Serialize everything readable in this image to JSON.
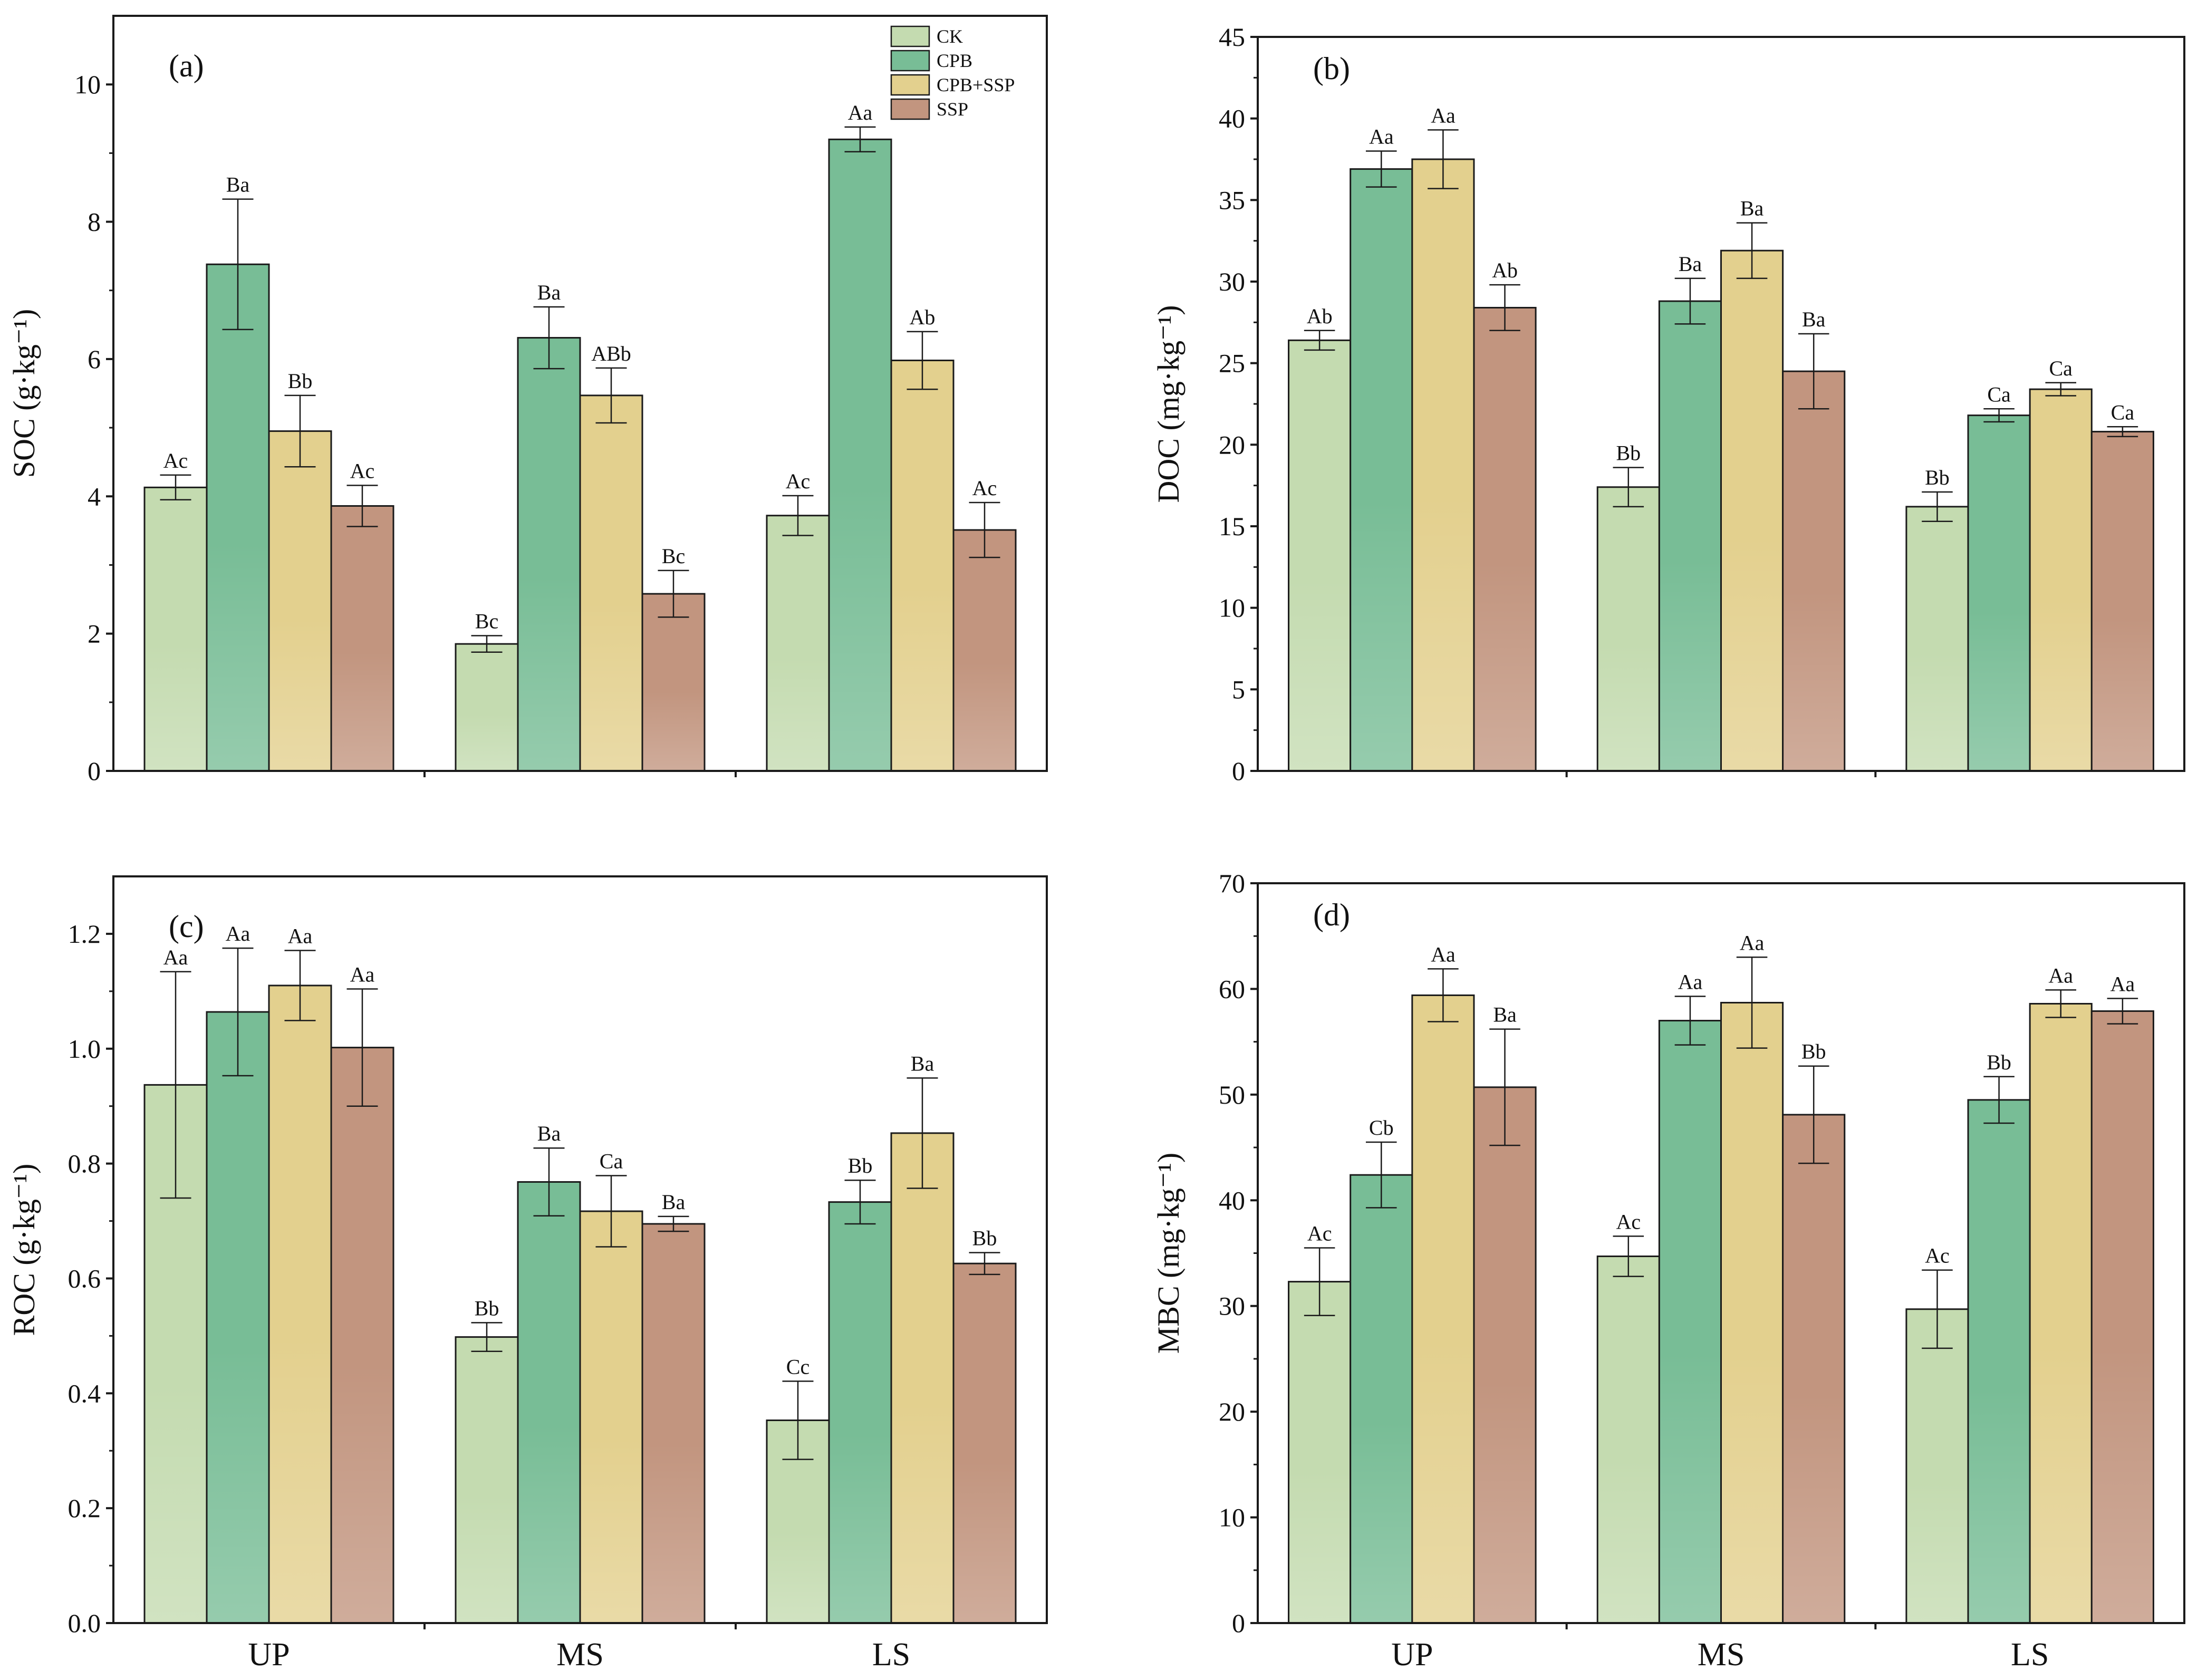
{
  "colors": {
    "CK": "#c4dbb0",
    "CPB": "#78bd96",
    "CPB+SSP": "#e3d08e",
    "SSP": "#c2957f"
  },
  "chart_data": [
    {
      "type": "bar",
      "panel_label": "(a)",
      "ylabel": "SOC (g·kg⁻¹)",
      "ylim": [
        0,
        11
      ],
      "yticks": [
        "0",
        "2",
        "4",
        "6",
        "8",
        "10"
      ],
      "categories": [
        "UP",
        "MS",
        "LS"
      ],
      "show_category_labels": false,
      "legend": {
        "position": "top-right",
        "entries": [
          "CK",
          "CPB",
          "CPB+SSP",
          "SSP"
        ]
      },
      "series": [
        {
          "name": "CK",
          "values": [
            4.13,
            1.85,
            3.72
          ],
          "errors": [
            0.18,
            0.12,
            0.29
          ],
          "labels": [
            "Ac",
            "Bc",
            "Ac"
          ]
        },
        {
          "name": "CPB",
          "values": [
            7.38,
            6.31,
            9.2
          ],
          "errors": [
            0.95,
            0.45,
            0.18
          ],
          "labels": [
            "Ba",
            "Ba",
            "Aa"
          ]
        },
        {
          "name": "CPB+SSP",
          "values": [
            4.95,
            5.47,
            5.98
          ],
          "errors": [
            0.52,
            0.4,
            0.42
          ],
          "labels": [
            "Bb",
            "ABb",
            "Ab"
          ]
        },
        {
          "name": "SSP",
          "values": [
            3.86,
            2.58,
            3.51
          ],
          "errors": [
            0.3,
            0.34,
            0.4
          ],
          "labels": [
            "Ac",
            "Bc",
            "Ac"
          ]
        }
      ]
    },
    {
      "type": "bar",
      "panel_label": "(b)",
      "ylabel": "DOC (mg·kg⁻¹)",
      "ylim": [
        0,
        45
      ],
      "yticks": [
        "0",
        "5",
        "10",
        "15",
        "20",
        "25",
        "30",
        "35",
        "40",
        "45"
      ],
      "categories": [
        "UP",
        "MS",
        "LS"
      ],
      "show_category_labels": false,
      "series": [
        {
          "name": "CK",
          "values": [
            26.4,
            17.4,
            16.2
          ],
          "errors": [
            0.6,
            1.2,
            0.9
          ],
          "labels": [
            "Ab",
            "Bb",
            "Bb"
          ]
        },
        {
          "name": "CPB",
          "values": [
            36.9,
            28.8,
            21.8
          ],
          "errors": [
            1.1,
            1.4,
            0.4
          ],
          "labels": [
            "Aa",
            "Ba",
            "Ca"
          ]
        },
        {
          "name": "CPB+SSP",
          "values": [
            37.5,
            31.9,
            23.4
          ],
          "errors": [
            1.8,
            1.7,
            0.4
          ],
          "labels": [
            "Aa",
            "Ba",
            "Ca"
          ]
        },
        {
          "name": "SSP",
          "values": [
            28.4,
            24.5,
            20.8
          ],
          "errors": [
            1.4,
            2.3,
            0.3
          ],
          "labels": [
            "Ab",
            "Ba",
            "Ca"
          ]
        }
      ]
    },
    {
      "type": "bar",
      "panel_label": "(c)",
      "ylabel": "ROC (g·kg⁻¹)",
      "ylim": [
        0,
        1.3
      ],
      "yticks": [
        "0.0",
        "0.2",
        "0.4",
        "0.6",
        "0.8",
        "1.0",
        "1.2"
      ],
      "categories": [
        "UP",
        "MS",
        "LS"
      ],
      "show_category_labels": true,
      "series": [
        {
          "name": "CK",
          "values": [
            0.937,
            0.498,
            0.353
          ],
          "errors": [
            0.197,
            0.025,
            0.068
          ],
          "labels": [
            "Aa",
            "Bb",
            "Cc"
          ]
        },
        {
          "name": "CPB",
          "values": [
            1.064,
            0.768,
            0.733
          ],
          "errors": [
            0.111,
            0.059,
            0.038
          ],
          "labels": [
            "Aa",
            "Ba",
            "Bb"
          ]
        },
        {
          "name": "CPB+SSP",
          "values": [
            1.11,
            0.717,
            0.853
          ],
          "errors": [
            0.061,
            0.062,
            0.096
          ],
          "labels": [
            "Aa",
            "Ca",
            "Ba"
          ]
        },
        {
          "name": "SSP",
          "values": [
            1.002,
            0.695,
            0.626
          ],
          "errors": [
            0.102,
            0.013,
            0.019
          ],
          "labels": [
            "Aa",
            "Ba",
            "Bb"
          ]
        }
      ]
    },
    {
      "type": "bar",
      "panel_label": "(d)",
      "ylabel": "MBC (mg·kg⁻¹)",
      "ylim": [
        0,
        70
      ],
      "yticks": [
        "0",
        "10",
        "20",
        "30",
        "40",
        "50",
        "60",
        "70"
      ],
      "categories": [
        "UP",
        "MS",
        "LS"
      ],
      "show_category_labels": true,
      "series": [
        {
          "name": "CK",
          "values": [
            32.3,
            34.7,
            29.7
          ],
          "errors": [
            3.2,
            1.9,
            3.7
          ],
          "labels": [
            "Ac",
            "Ac",
            "Ac"
          ]
        },
        {
          "name": "CPB",
          "values": [
            42.4,
            57.0,
            49.5
          ],
          "errors": [
            3.1,
            2.3,
            2.2
          ],
          "labels": [
            "Cb",
            "Aa",
            "Bb"
          ]
        },
        {
          "name": "CPB+SSP",
          "values": [
            59.4,
            58.7,
            58.6
          ],
          "errors": [
            2.5,
            4.3,
            1.3
          ],
          "labels": [
            "Aa",
            "Aa",
            "Aa"
          ]
        },
        {
          "name": "SSP",
          "values": [
            50.7,
            48.1,
            57.9
          ],
          "errors": [
            5.5,
            4.6,
            1.2
          ],
          "labels": [
            "Ba",
            "Bb",
            "Aa"
          ]
        }
      ]
    }
  ]
}
